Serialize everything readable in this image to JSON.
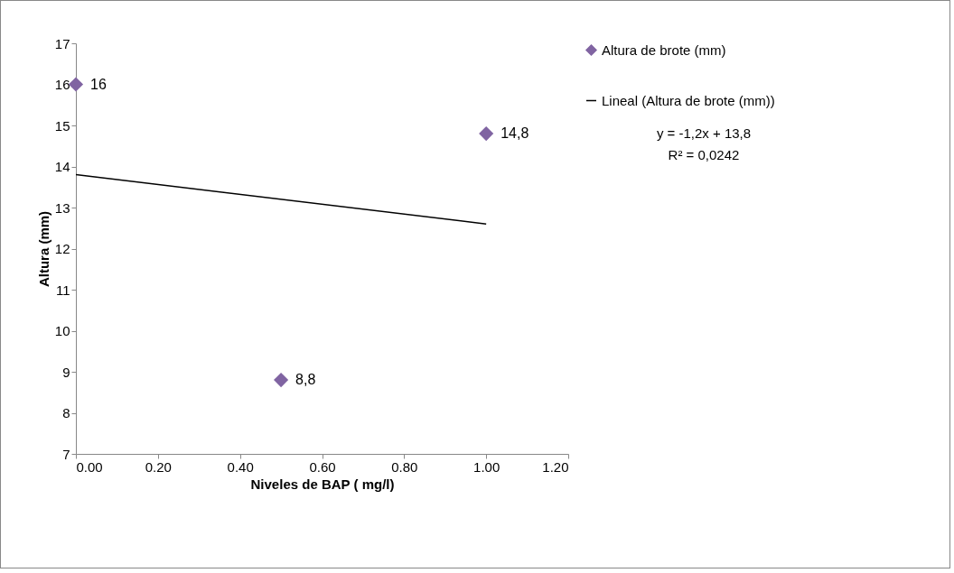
{
  "chart_data": {
    "type": "scatter",
    "xlabel": "Niveles de BAP ( mg/l)",
    "ylabel": "Altura (mm)",
    "x": [
      0,
      0.5,
      1
    ],
    "series": [
      {
        "name": "Altura de brote (mm)",
        "color": "#8064a2",
        "marker": "diamond",
        "values": [
          16,
          8.8,
          14.8
        ],
        "value_labels": [
          "16",
          "8,8",
          "14,8"
        ]
      },
      {
        "name": "Lineal (Altura de brote (mm))",
        "type": "line",
        "marker": "none",
        "color": "#000000",
        "x": [
          0,
          1
        ],
        "values": [
          13.8,
          12.6
        ]
      }
    ],
    "xlim": [
      0,
      1.2
    ],
    "xticks": [
      {
        "value": 0,
        "label": "0.00"
      },
      {
        "value": 0.2,
        "label": "0.20"
      },
      {
        "value": 0.4,
        "label": "0.40"
      },
      {
        "value": 0.6,
        "label": "0.60"
      },
      {
        "value": 0.8,
        "label": "0.80"
      },
      {
        "value": 1,
        "label": "1.00"
      },
      {
        "value": 1.2,
        "label": "1.20"
      }
    ],
    "ylim": [
      7,
      17
    ],
    "yticks": [
      7,
      8,
      9,
      10,
      11,
      12,
      13,
      14,
      15,
      16,
      17
    ],
    "grid": false,
    "legend": "right",
    "annotations": [
      "y = -1,2x + 13,8",
      "R² = 0,0242"
    ]
  }
}
